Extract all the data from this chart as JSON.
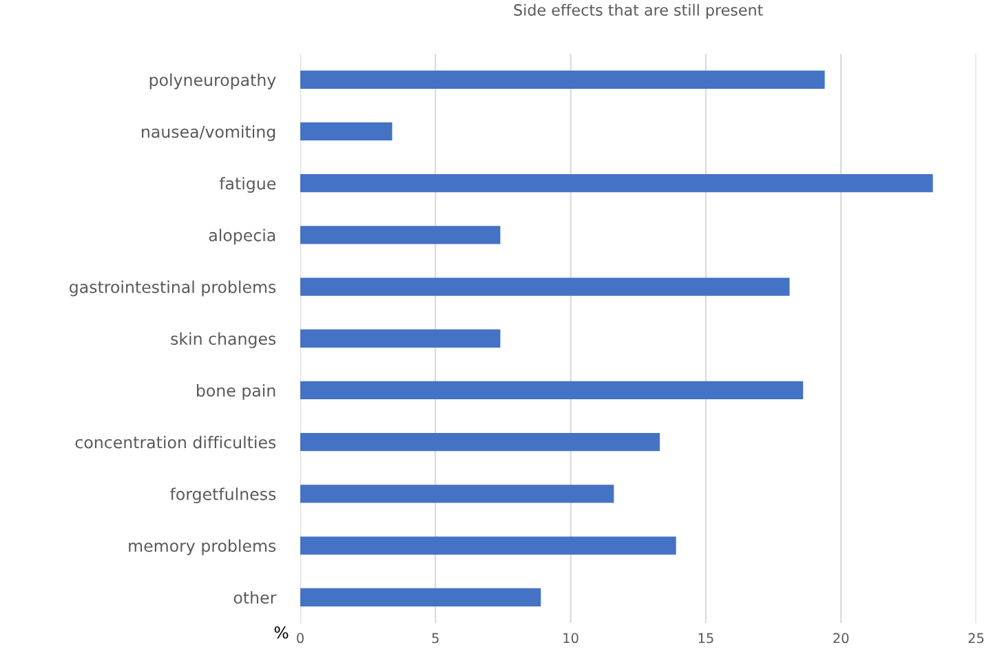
{
  "chart_data": {
    "type": "bar",
    "orientation": "horizontal",
    "title": "Side effects that are still present",
    "xlabel": "%",
    "categories": [
      "polyneuropathy",
      "nausea/vomiting",
      "fatigue",
      "alopecia",
      "gastrointestinal problems",
      "skin changes",
      "bone pain",
      "concentration difficulties",
      "forgetfulness",
      "memory problems",
      "other"
    ],
    "values": [
      19.4,
      3.4,
      23.4,
      7.4,
      18.1,
      7.4,
      18.6,
      13.3,
      11.6,
      13.9,
      8.9
    ],
    "color": "#4472c4",
    "xlim": [
      0,
      25
    ],
    "xticks": [
      0,
      5,
      10,
      15,
      20,
      25
    ],
    "grid": "x"
  }
}
